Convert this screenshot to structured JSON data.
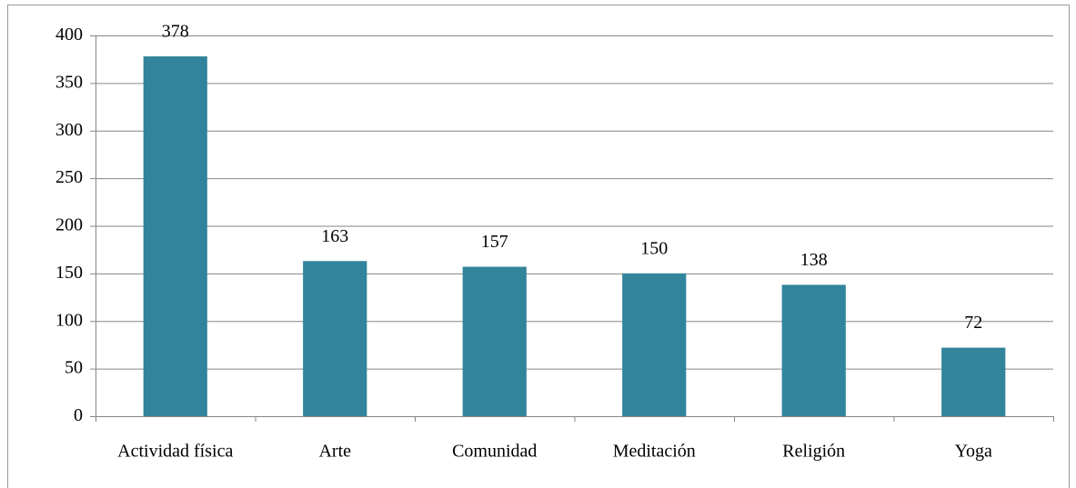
{
  "chart_data": {
    "type": "bar",
    "categories": [
      "Actividad física",
      "Arte",
      "Comunidad",
      "Meditación",
      "Religión",
      "Yoga"
    ],
    "values": [
      378,
      163,
      157,
      150,
      138,
      72
    ],
    "color": "#31849b",
    "ylim": [
      0,
      400
    ],
    "yticks": [
      0,
      50,
      100,
      150,
      200,
      250,
      300,
      350,
      400
    ],
    "grid": true
  }
}
